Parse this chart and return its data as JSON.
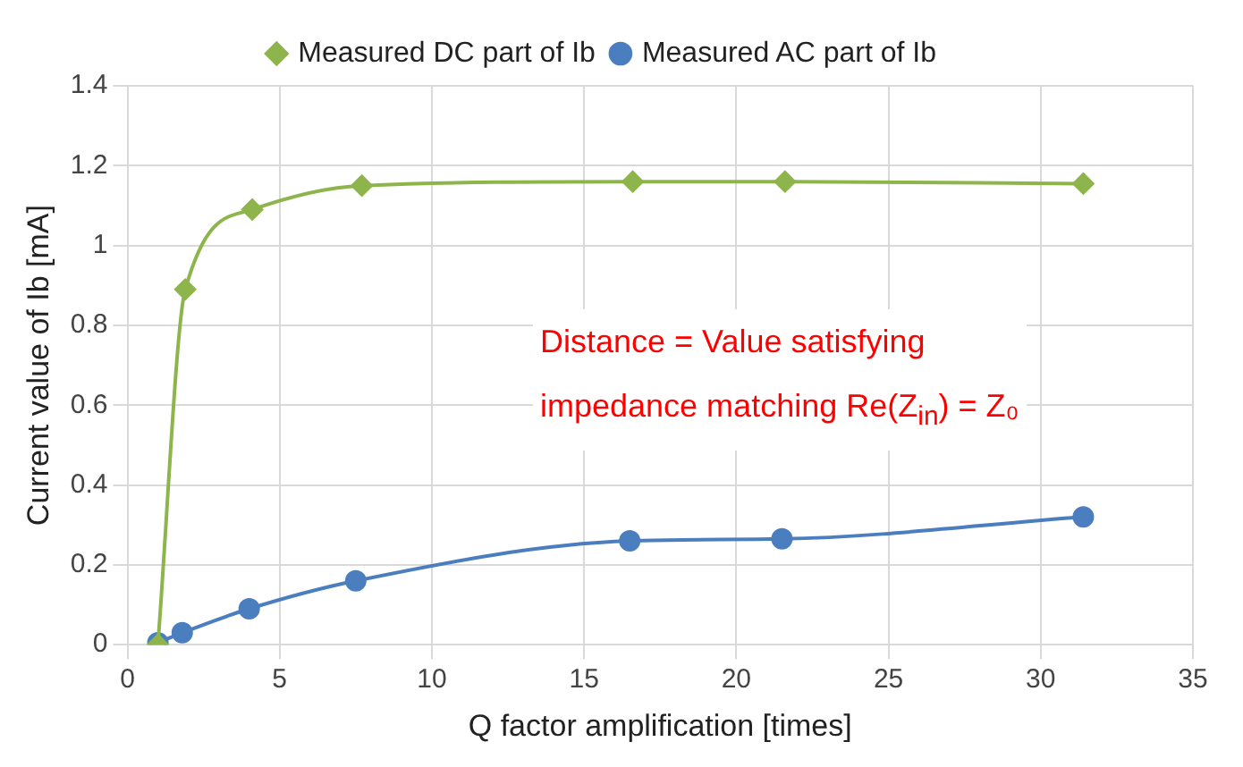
{
  "chart_data": {
    "type": "line",
    "xlabel": "Q factor amplification [times]",
    "ylabel": "Current value of Ib [mA]",
    "xlim": [
      0,
      35
    ],
    "xticks": [
      0,
      5,
      10,
      15,
      20,
      25,
      30,
      35
    ],
    "ylim": [
      0,
      1.4
    ],
    "yticks": [
      0,
      0.2,
      0.4,
      0.6,
      0.8,
      1,
      1.2,
      1.4
    ],
    "grid": true,
    "legend": "top",
    "series": [
      {
        "name": "Measured DC part of Ib",
        "color": "#8db54b",
        "marker": "diamond",
        "x": [
          1,
          1.9,
          4.1,
          7.7,
          16.6,
          21.6,
          31.4
        ],
        "values": [
          0,
          0.89,
          1.09,
          1.15,
          1.16,
          1.16,
          1.155
        ]
      },
      {
        "name": "Measured AC part of Ib",
        "color": "#4a7ebf",
        "marker": "circle",
        "x": [
          1,
          1.8,
          4,
          7.5,
          16.5,
          21.5,
          31.4
        ],
        "values": [
          0.005,
          0.03,
          0.09,
          0.16,
          0.26,
          0.265,
          0.32
        ]
      }
    ],
    "annotations": [
      "Distance = Value satisfying",
      "impedance matching Re(Z$_{in}$) = Z₀"
    ]
  }
}
